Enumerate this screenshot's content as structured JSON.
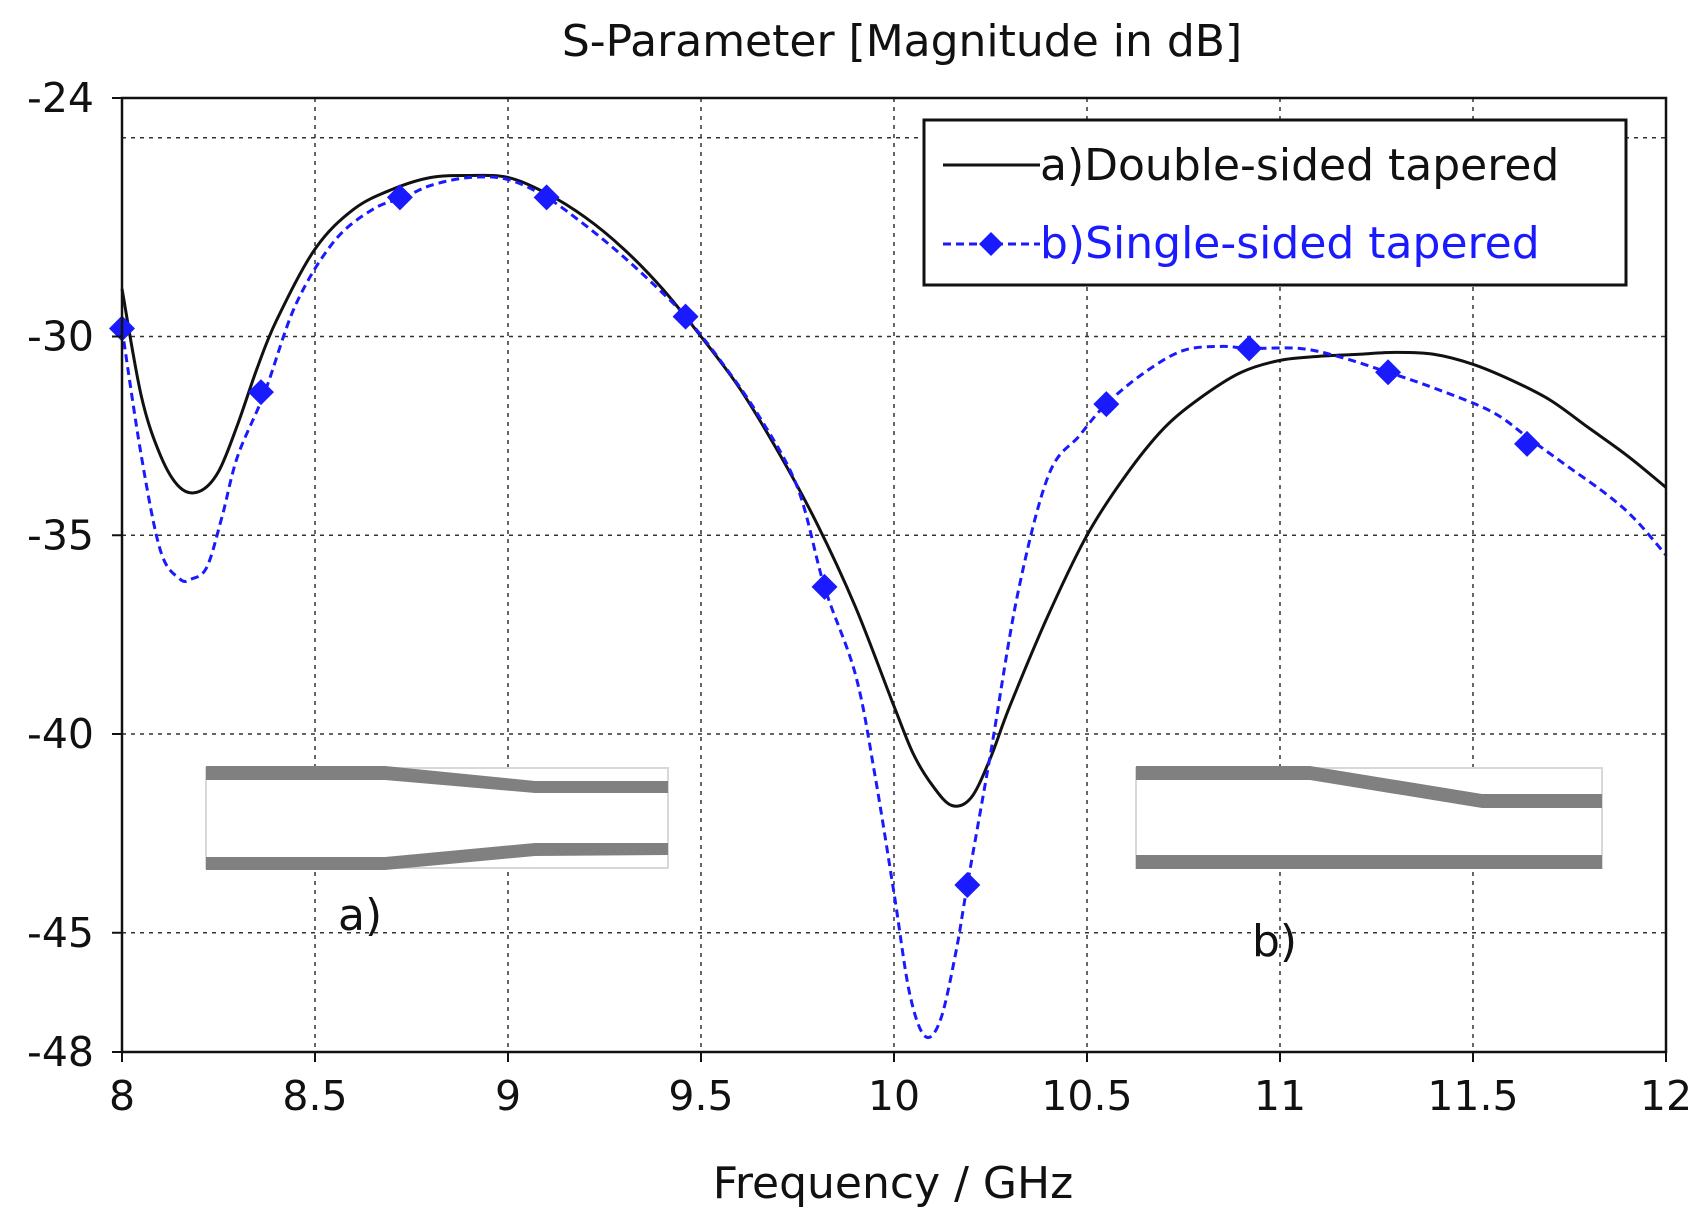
{
  "chart_data": {
    "type": "line",
    "title": "S-Parameter [Magnitude in dB]",
    "xlabel": "Frequency / GHz",
    "ylabel": "",
    "xlim": [
      8,
      12
    ],
    "ylim": [
      -48,
      -24
    ],
    "x_ticks": [
      8,
      8.5,
      9,
      9.5,
      10,
      10.5,
      11,
      11.5,
      12
    ],
    "x_tick_labels": [
      "8",
      "8.5",
      "9",
      "9.5",
      "10",
      "10.5",
      "11",
      "11.5",
      "12"
    ],
    "y_ticks": [
      -24,
      -30,
      -35,
      -40,
      -45,
      -48
    ],
    "y_tick_labels": [
      "-24",
      "-30",
      "-35",
      "-40",
      "-45",
      "-48"
    ],
    "y_grid": [
      -25,
      -30,
      -35,
      -40,
      -45
    ],
    "grid": true,
    "legend_position": "top-right",
    "series": [
      {
        "name": "a)Double-sided tapered",
        "color": "#111111",
        "style": "solid",
        "marker": "none",
        "x": [
          8.0,
          8.05,
          8.1,
          8.15,
          8.2,
          8.25,
          8.3,
          8.35,
          8.4,
          8.5,
          8.6,
          8.7,
          8.8,
          8.9,
          9.0,
          9.1,
          9.2,
          9.3,
          9.4,
          9.5,
          9.6,
          9.7,
          9.8,
          9.9,
          10.0,
          10.05,
          10.1,
          10.15,
          10.2,
          10.25,
          10.3,
          10.4,
          10.5,
          10.6,
          10.7,
          10.8,
          10.9,
          11.0,
          11.1,
          11.2,
          11.3,
          11.4,
          11.5,
          11.6,
          11.7,
          11.8,
          11.9,
          12.0
        ],
        "y": [
          -28.8,
          -31.5,
          -33.0,
          -33.8,
          -33.9,
          -33.4,
          -32.2,
          -30.8,
          -29.6,
          -27.8,
          -26.8,
          -26.3,
          -26.0,
          -25.95,
          -26.0,
          -26.4,
          -27.0,
          -27.8,
          -28.8,
          -30.0,
          -31.3,
          -32.9,
          -34.7,
          -36.8,
          -39.3,
          -40.5,
          -41.3,
          -41.8,
          -41.6,
          -40.6,
          -39.3,
          -37.0,
          -35.0,
          -33.5,
          -32.3,
          -31.5,
          -30.9,
          -30.6,
          -30.5,
          -30.45,
          -30.4,
          -30.45,
          -30.7,
          -31.1,
          -31.6,
          -32.3,
          -33.0,
          -33.8
        ]
      },
      {
        "name": "b)Single-sided tapered",
        "color": "#1a1aff",
        "style": "dashed",
        "marker": "diamond",
        "x": [
          8.0,
          8.05,
          8.1,
          8.15,
          8.18,
          8.22,
          8.26,
          8.3,
          8.37,
          8.45,
          8.55,
          8.65,
          8.73,
          8.8,
          8.9,
          9.0,
          9.1,
          9.2,
          9.3,
          9.4,
          9.46,
          9.55,
          9.65,
          9.75,
          9.82,
          9.9,
          9.95,
          10.0,
          10.04,
          10.08,
          10.12,
          10.16,
          10.19,
          10.25,
          10.32,
          10.4,
          10.48,
          10.55,
          10.65,
          10.75,
          10.85,
          10.92,
          11.05,
          11.15,
          11.28,
          11.4,
          11.55,
          11.65,
          11.75,
          11.85,
          11.92,
          12.0
        ],
        "y": [
          -29.8,
          -33.0,
          -35.4,
          -36.1,
          -36.1,
          -35.8,
          -34.5,
          -33.0,
          -31.4,
          -29.2,
          -27.6,
          -26.8,
          -26.5,
          -26.2,
          -26.0,
          -26.05,
          -26.5,
          -27.2,
          -28.0,
          -28.9,
          -29.5,
          -30.6,
          -32.0,
          -33.8,
          -36.3,
          -38.5,
          -41.0,
          -44.0,
          -46.5,
          -47.6,
          -47.2,
          -45.5,
          -43.8,
          -40.5,
          -36.5,
          -33.5,
          -32.5,
          -31.7,
          -30.9,
          -30.35,
          -30.25,
          -30.3,
          -30.3,
          -30.5,
          -30.9,
          -31.3,
          -31.9,
          -32.6,
          -33.3,
          -34.0,
          -34.6,
          -35.5
        ],
        "markers_x": [
          8.0,
          8.36,
          8.72,
          9.1,
          9.46,
          9.82,
          10.19,
          10.55,
          10.92,
          11.28,
          11.64
        ],
        "markers_y": [
          -29.8,
          -31.4,
          -26.5,
          -26.5,
          -29.5,
          -36.3,
          -43.8,
          -31.7,
          -30.3,
          -30.9,
          -32.7
        ]
      }
    ],
    "annotations": [
      "a)",
      "b)"
    ]
  }
}
